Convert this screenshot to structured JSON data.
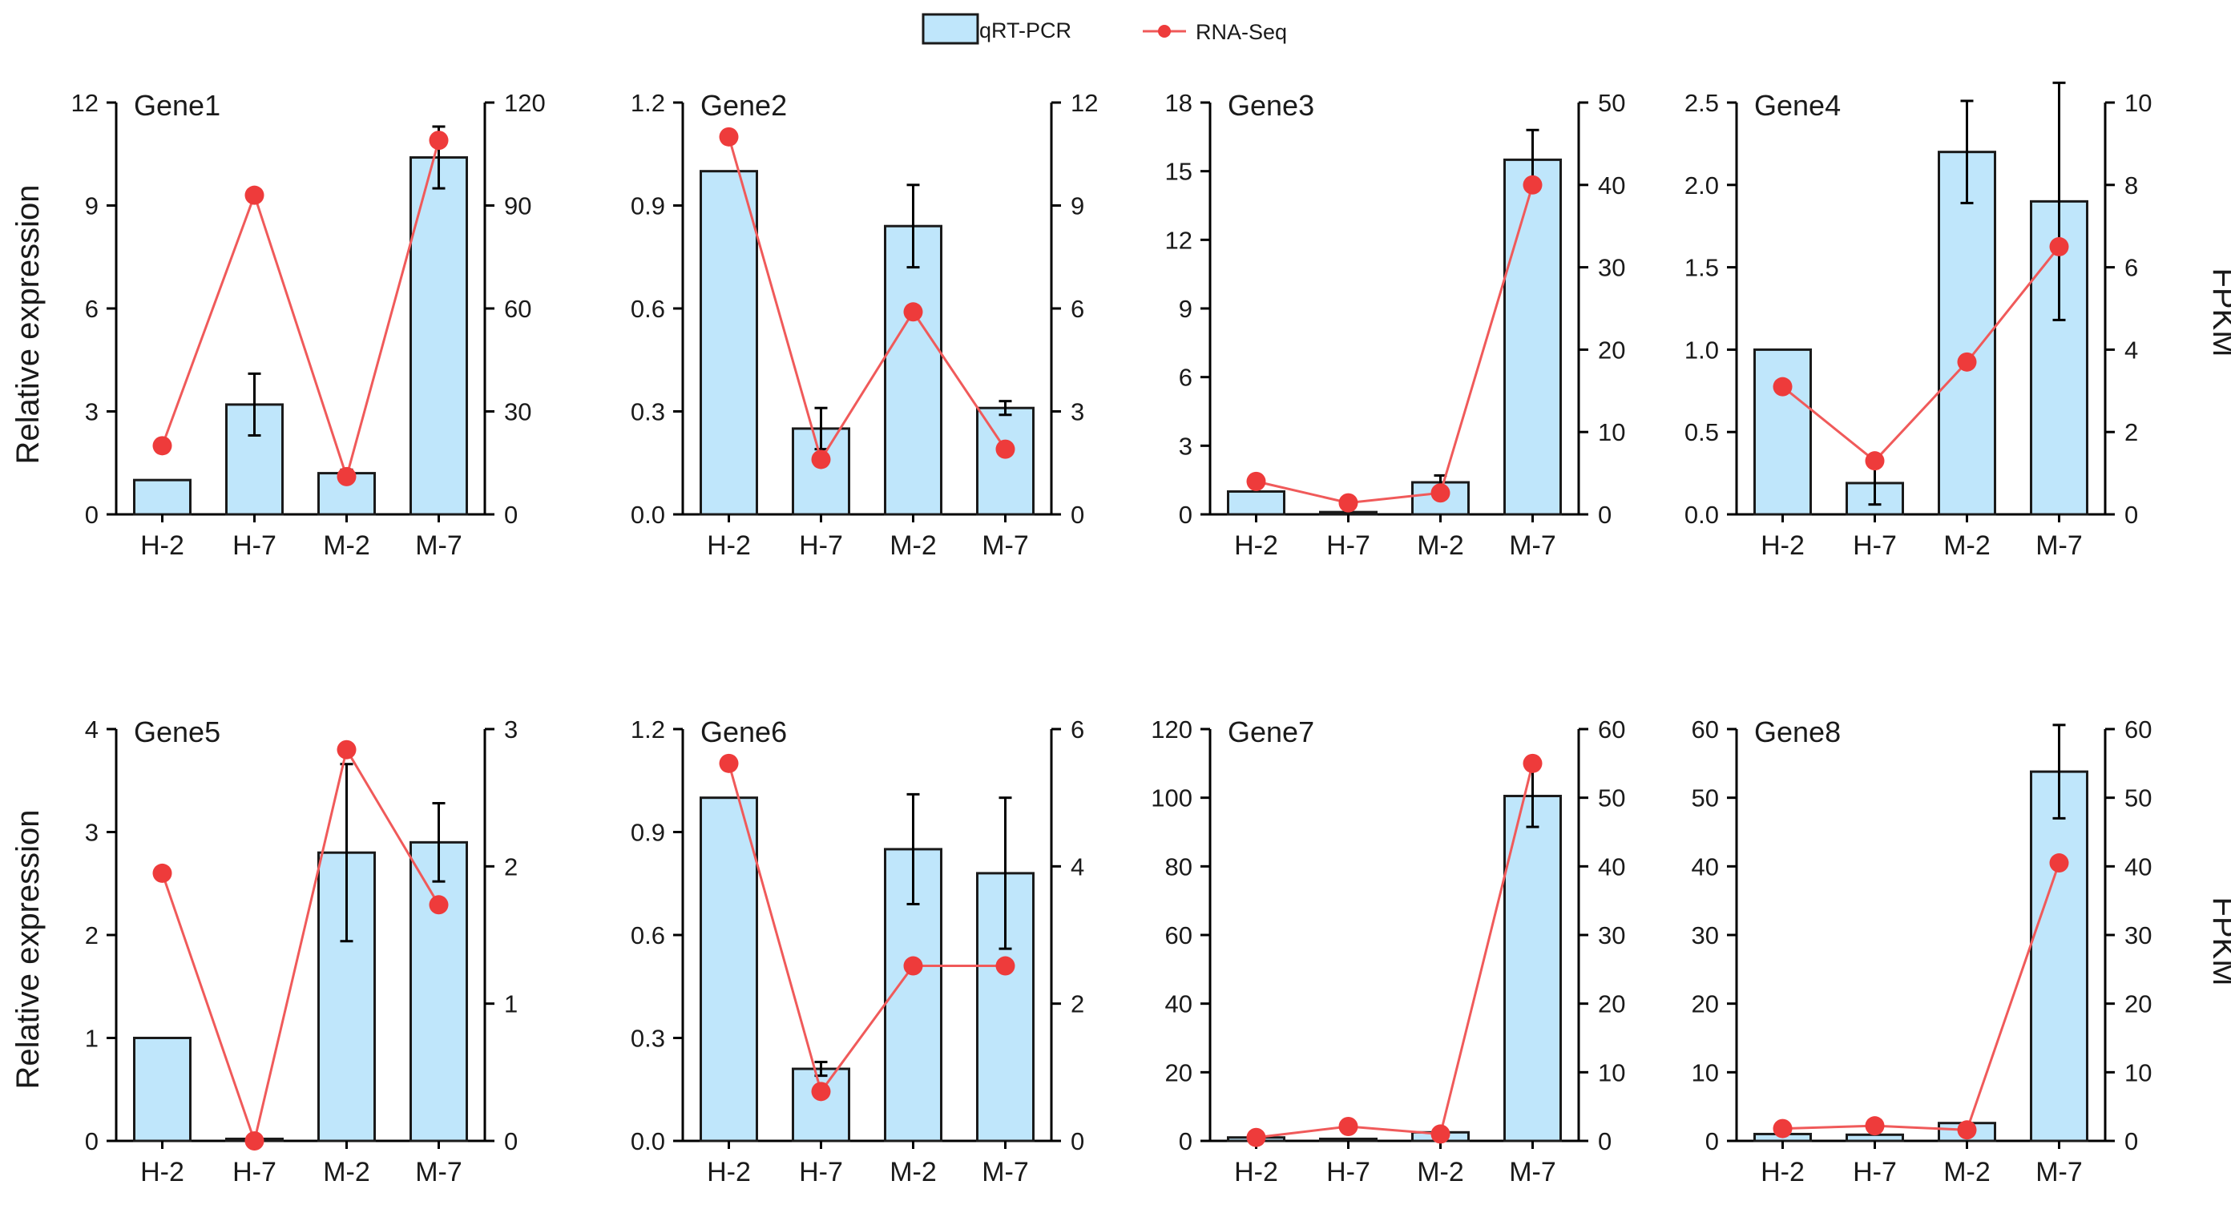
{
  "chart_data": {
    "type": "bar+line",
    "legend": [
      {
        "name": "qRT-PCR",
        "mark": "bar",
        "color": "#bfe6fb"
      },
      {
        "name": "RNA-Seq",
        "mark": "line-dot",
        "color": "#ee3b3b"
      }
    ],
    "categories": [
      "H-2",
      "H-7",
      "M-2",
      "M-7"
    ],
    "left_ylabel": "Relative expression",
    "right_ylabel": "FPKM",
    "panels": [
      {
        "title": "Gene1",
        "left": {
          "ticks": [
            0,
            3,
            6,
            9,
            12
          ],
          "labels": [
            "0",
            "3",
            "6",
            "9",
            "12"
          ],
          "max": 12
        },
        "right": {
          "ticks": [
            0,
            30,
            60,
            90,
            120
          ],
          "labels": [
            "0",
            "30",
            "60",
            "90",
            "120"
          ],
          "max": 120
        },
        "qrt_pcr": [
          1.0,
          3.2,
          1.2,
          10.4
        ],
        "qrt_pcr_err": [
          0,
          0.9,
          0.1,
          0.9
        ],
        "rna_seq": [
          20,
          93,
          11,
          109
        ]
      },
      {
        "title": "Gene2",
        "left": {
          "ticks": [
            0,
            0.3,
            0.6,
            0.9,
            1.2
          ],
          "labels": [
            "0.0",
            "0.3",
            "0.6",
            "0.9",
            "1.2"
          ],
          "max": 1.2
        },
        "right": {
          "ticks": [
            0,
            3,
            6,
            9,
            12
          ],
          "labels": [
            "0",
            "3",
            "6",
            "9",
            "12"
          ],
          "max": 12
        },
        "qrt_pcr": [
          1.0,
          0.25,
          0.84,
          0.31
        ],
        "qrt_pcr_err": [
          0,
          0.06,
          0.12,
          0.02
        ],
        "rna_seq": [
          11.0,
          1.6,
          5.9,
          1.9
        ]
      },
      {
        "title": "Gene3",
        "left": {
          "ticks": [
            0,
            3,
            6,
            9,
            12,
            15,
            18
          ],
          "labels": [
            "0",
            "3",
            "6",
            "9",
            "12",
            "15",
            "18"
          ],
          "max": 18
        },
        "right": {
          "ticks": [
            0,
            10,
            20,
            30,
            40,
            50
          ],
          "labels": [
            "0",
            "10",
            "20",
            "30",
            "40",
            "50"
          ],
          "max": 50
        },
        "qrt_pcr": [
          1.0,
          0.1,
          1.4,
          15.5
        ],
        "qrt_pcr_err": [
          0,
          0,
          0.3,
          1.3
        ],
        "rna_seq": [
          4.0,
          1.4,
          2.6,
          40
        ]
      },
      {
        "title": "Gene4",
        "left": {
          "ticks": [
            0,
            0.5,
            1.0,
            1.5,
            2.0,
            2.5
          ],
          "labels": [
            "0.0",
            "0.5",
            "1.0",
            "1.5",
            "2.0",
            "2.5"
          ],
          "max": 2.5
        },
        "right": {
          "ticks": [
            0,
            2,
            4,
            6,
            8,
            10
          ],
          "labels": [
            "0",
            "2",
            "4",
            "6",
            "8",
            "10"
          ],
          "max": 10
        },
        "qrt_pcr": [
          1.0,
          0.19,
          2.2,
          1.9
        ],
        "qrt_pcr_err": [
          0,
          0.13,
          0.31,
          0.72
        ],
        "rna_seq": [
          3.1,
          1.3,
          3.7,
          6.5
        ]
      },
      {
        "title": "Gene5",
        "left": {
          "ticks": [
            0,
            1,
            2,
            3,
            4
          ],
          "labels": [
            "0",
            "1",
            "2",
            "3",
            "4"
          ],
          "max": 4
        },
        "right": {
          "ticks": [
            0,
            1,
            2,
            3
          ],
          "labels": [
            "0",
            "1",
            "2",
            "3"
          ],
          "max": 3
        },
        "qrt_pcr": [
          1.0,
          0.02,
          2.8,
          2.9
        ],
        "qrt_pcr_err": [
          0,
          0,
          0.86,
          0.38
        ],
        "rna_seq": [
          1.95,
          0.0,
          2.85,
          1.72
        ]
      },
      {
        "title": "Gene6",
        "left": {
          "ticks": [
            0,
            0.3,
            0.6,
            0.9,
            1.2
          ],
          "labels": [
            "0.0",
            "0.3",
            "0.6",
            "0.9",
            "1.2"
          ],
          "max": 1.2
        },
        "right": {
          "ticks": [
            0,
            2,
            4,
            6
          ],
          "labels": [
            "0",
            "2",
            "4",
            "6"
          ],
          "max": 6
        },
        "qrt_pcr": [
          1.0,
          0.21,
          0.85,
          0.78
        ],
        "qrt_pcr_err": [
          0,
          0.02,
          0.16,
          0.22
        ],
        "rna_seq": [
          5.5,
          0.72,
          2.55,
          2.55
        ]
      },
      {
        "title": "Gene7",
        "left": {
          "ticks": [
            0,
            20,
            40,
            60,
            80,
            100,
            120
          ],
          "labels": [
            "0",
            "20",
            "40",
            "60",
            "80",
            "100",
            "120"
          ],
          "max": 120
        },
        "right": {
          "ticks": [
            0,
            10,
            20,
            30,
            40,
            50,
            60
          ],
          "labels": [
            "0",
            "10",
            "20",
            "30",
            "40",
            "50",
            "60"
          ],
          "max": 60
        },
        "qrt_pcr": [
          1.0,
          0.6,
          2.5,
          100.5
        ],
        "qrt_pcr_err": [
          0,
          0,
          0.5,
          9.0
        ],
        "rna_seq": [
          0.5,
          2.1,
          1.0,
          55
        ]
      },
      {
        "title": "Gene8",
        "left": {
          "ticks": [
            0,
            10,
            20,
            30,
            40,
            50,
            60
          ],
          "labels": [
            "0",
            "10",
            "20",
            "30",
            "40",
            "50",
            "60"
          ],
          "max": 60
        },
        "right": {
          "ticks": [
            0,
            10,
            20,
            30,
            40,
            50,
            60
          ],
          "labels": [
            "0",
            "10",
            "20",
            "30",
            "40",
            "50",
            "60"
          ],
          "max": 60
        },
        "qrt_pcr": [
          1.0,
          0.9,
          2.6,
          53.8
        ],
        "qrt_pcr_err": [
          0,
          0,
          0,
          6.8
        ],
        "rna_seq": [
          1.8,
          2.2,
          1.6,
          40.5
        ]
      }
    ]
  }
}
